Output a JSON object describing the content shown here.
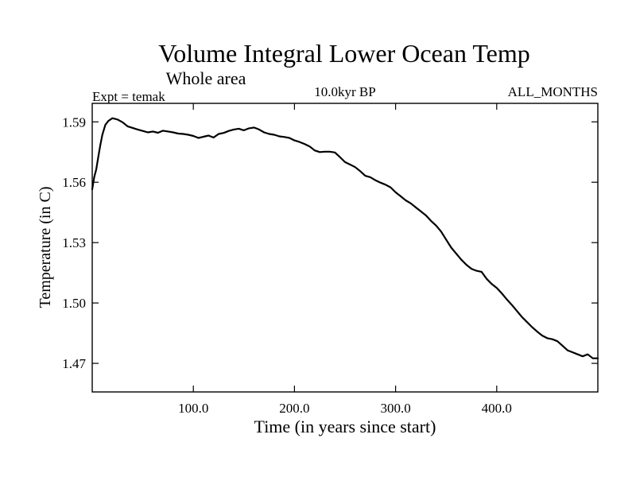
{
  "chart_data": {
    "type": "line",
    "title": "Volume Integral Lower Ocean Temp",
    "subtitle": "Whole area",
    "experiment_label": "Expt = temak",
    "period_label": "10.0kyr BP",
    "months_label": "ALL_MONTHS",
    "xlabel": "Time (in years since start)",
    "ylabel": "Temperature (in C)",
    "xlim": [
      0,
      500
    ],
    "ylim": [
      1.4558,
      1.5992
    ],
    "x_ticks": [
      100,
      200,
      300,
      400
    ],
    "x_tick_labels": [
      "100.0",
      "200.0",
      "300.0",
      "400.0"
    ],
    "y_ticks": [
      1.47,
      1.5,
      1.53,
      1.56,
      1.59
    ],
    "y_tick_labels": [
      "1.47",
      "1.50",
      "1.53",
      "1.56",
      "1.59"
    ],
    "grid": false,
    "series": [
      {
        "name": "Volume Integral Lower Ocean Temp",
        "color": "#000000",
        "x": [
          0,
          2,
          4,
          6,
          8,
          10,
          13,
          16,
          20,
          25,
          30,
          35,
          40,
          45,
          50,
          55,
          60,
          65,
          70,
          75,
          80,
          85,
          90,
          95,
          100,
          105,
          110,
          115,
          120,
          125,
          130,
          135,
          140,
          145,
          150,
          155,
          160,
          165,
          170,
          175,
          180,
          185,
          190,
          195,
          200,
          205,
          210,
          215,
          220,
          225,
          230,
          235,
          240,
          245,
          250,
          255,
          260,
          265,
          270,
          275,
          280,
          285,
          290,
          295,
          300,
          305,
          310,
          315,
          320,
          325,
          330,
          335,
          340,
          345,
          350,
          355,
          360,
          365,
          370,
          375,
          380,
          385,
          390,
          395,
          400,
          405,
          410,
          415,
          420,
          425,
          430,
          435,
          440,
          445,
          450,
          455,
          460,
          465,
          470,
          475,
          480,
          485,
          490,
          495,
          500
        ],
        "values": [
          1.5565,
          1.5625,
          1.5665,
          1.5725,
          1.5785,
          1.5835,
          1.5885,
          1.5905,
          1.5918,
          1.5912,
          1.5898,
          1.5878,
          1.587,
          1.5862,
          1.5855,
          1.5848,
          1.5852,
          1.5846,
          1.5856,
          1.5852,
          1.5848,
          1.5842,
          1.584,
          1.5836,
          1.583,
          1.582,
          1.5826,
          1.5832,
          1.5822,
          1.584,
          1.5845,
          1.5855,
          1.5862,
          1.5866,
          1.5858,
          1.5868,
          1.5872,
          1.5862,
          1.5848,
          1.584,
          1.5836,
          1.5828,
          1.5825,
          1.582,
          1.5808,
          1.58,
          1.579,
          1.5778,
          1.5758,
          1.575,
          1.5752,
          1.5752,
          1.5748,
          1.5725,
          1.57,
          1.5688,
          1.5675,
          1.5655,
          1.5632,
          1.5625,
          1.561,
          1.5598,
          1.5588,
          1.5575,
          1.555,
          1.553,
          1.551,
          1.5495,
          1.5475,
          1.5455,
          1.5435,
          1.5408,
          1.5385,
          1.5355,
          1.5315,
          1.5275,
          1.5245,
          1.5215,
          1.519,
          1.517,
          1.516,
          1.5155,
          1.512,
          1.5095,
          1.5075,
          1.5048,
          1.5018,
          1.499,
          1.496,
          1.493,
          1.4905,
          1.488,
          1.4858,
          1.4838,
          1.4825,
          1.482,
          1.481,
          1.4788,
          1.4765,
          1.4755,
          1.4745,
          1.4735,
          1.4745,
          1.4725,
          1.4725
        ]
      }
    ]
  }
}
